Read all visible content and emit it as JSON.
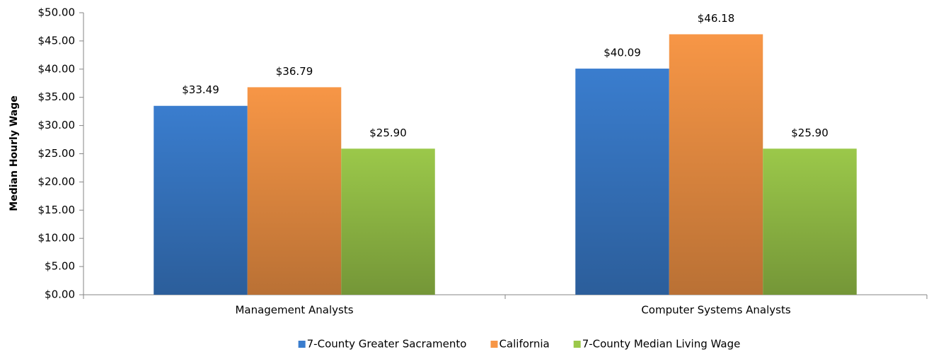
{
  "chart_data": {
    "type": "bar",
    "y_label": "Median Hourly Wage",
    "categories": [
      "Management Analysts",
      "Computer Systems Analysts"
    ],
    "series": [
      {
        "name": "7-County Greater Sacramento",
        "color": "#3a7dce",
        "values": [
          33.49,
          40.09
        ],
        "value_labels": [
          "$33.49",
          "$40.09"
        ]
      },
      {
        "name": "California",
        "color": "#f79646",
        "values": [
          36.79,
          46.18
        ],
        "value_labels": [
          "$36.79",
          "$46.18"
        ]
      },
      {
        "name": "7-County Median Living Wage",
        "color": "#9bc84a",
        "values": [
          25.9,
          25.9
        ],
        "value_labels": [
          "$25.90",
          "$25.90"
        ]
      }
    ],
    "ylim": [
      0,
      50
    ],
    "yticks": [
      {
        "value": 0,
        "label": "$0.00"
      },
      {
        "value": 5,
        "label": "$5.00"
      },
      {
        "value": 10,
        "label": "$10.00"
      },
      {
        "value": 15,
        "label": "$15.00"
      },
      {
        "value": 20,
        "label": "$20.00"
      },
      {
        "value": 25,
        "label": "$25.00"
      },
      {
        "value": 30,
        "label": "$30.00"
      },
      {
        "value": 35,
        "label": "$35.00"
      },
      {
        "value": 40,
        "label": "$40.00"
      },
      {
        "value": 45,
        "label": "$45.00"
      },
      {
        "value": 50,
        "label": "$50.00"
      }
    ],
    "legend": "bottom"
  }
}
